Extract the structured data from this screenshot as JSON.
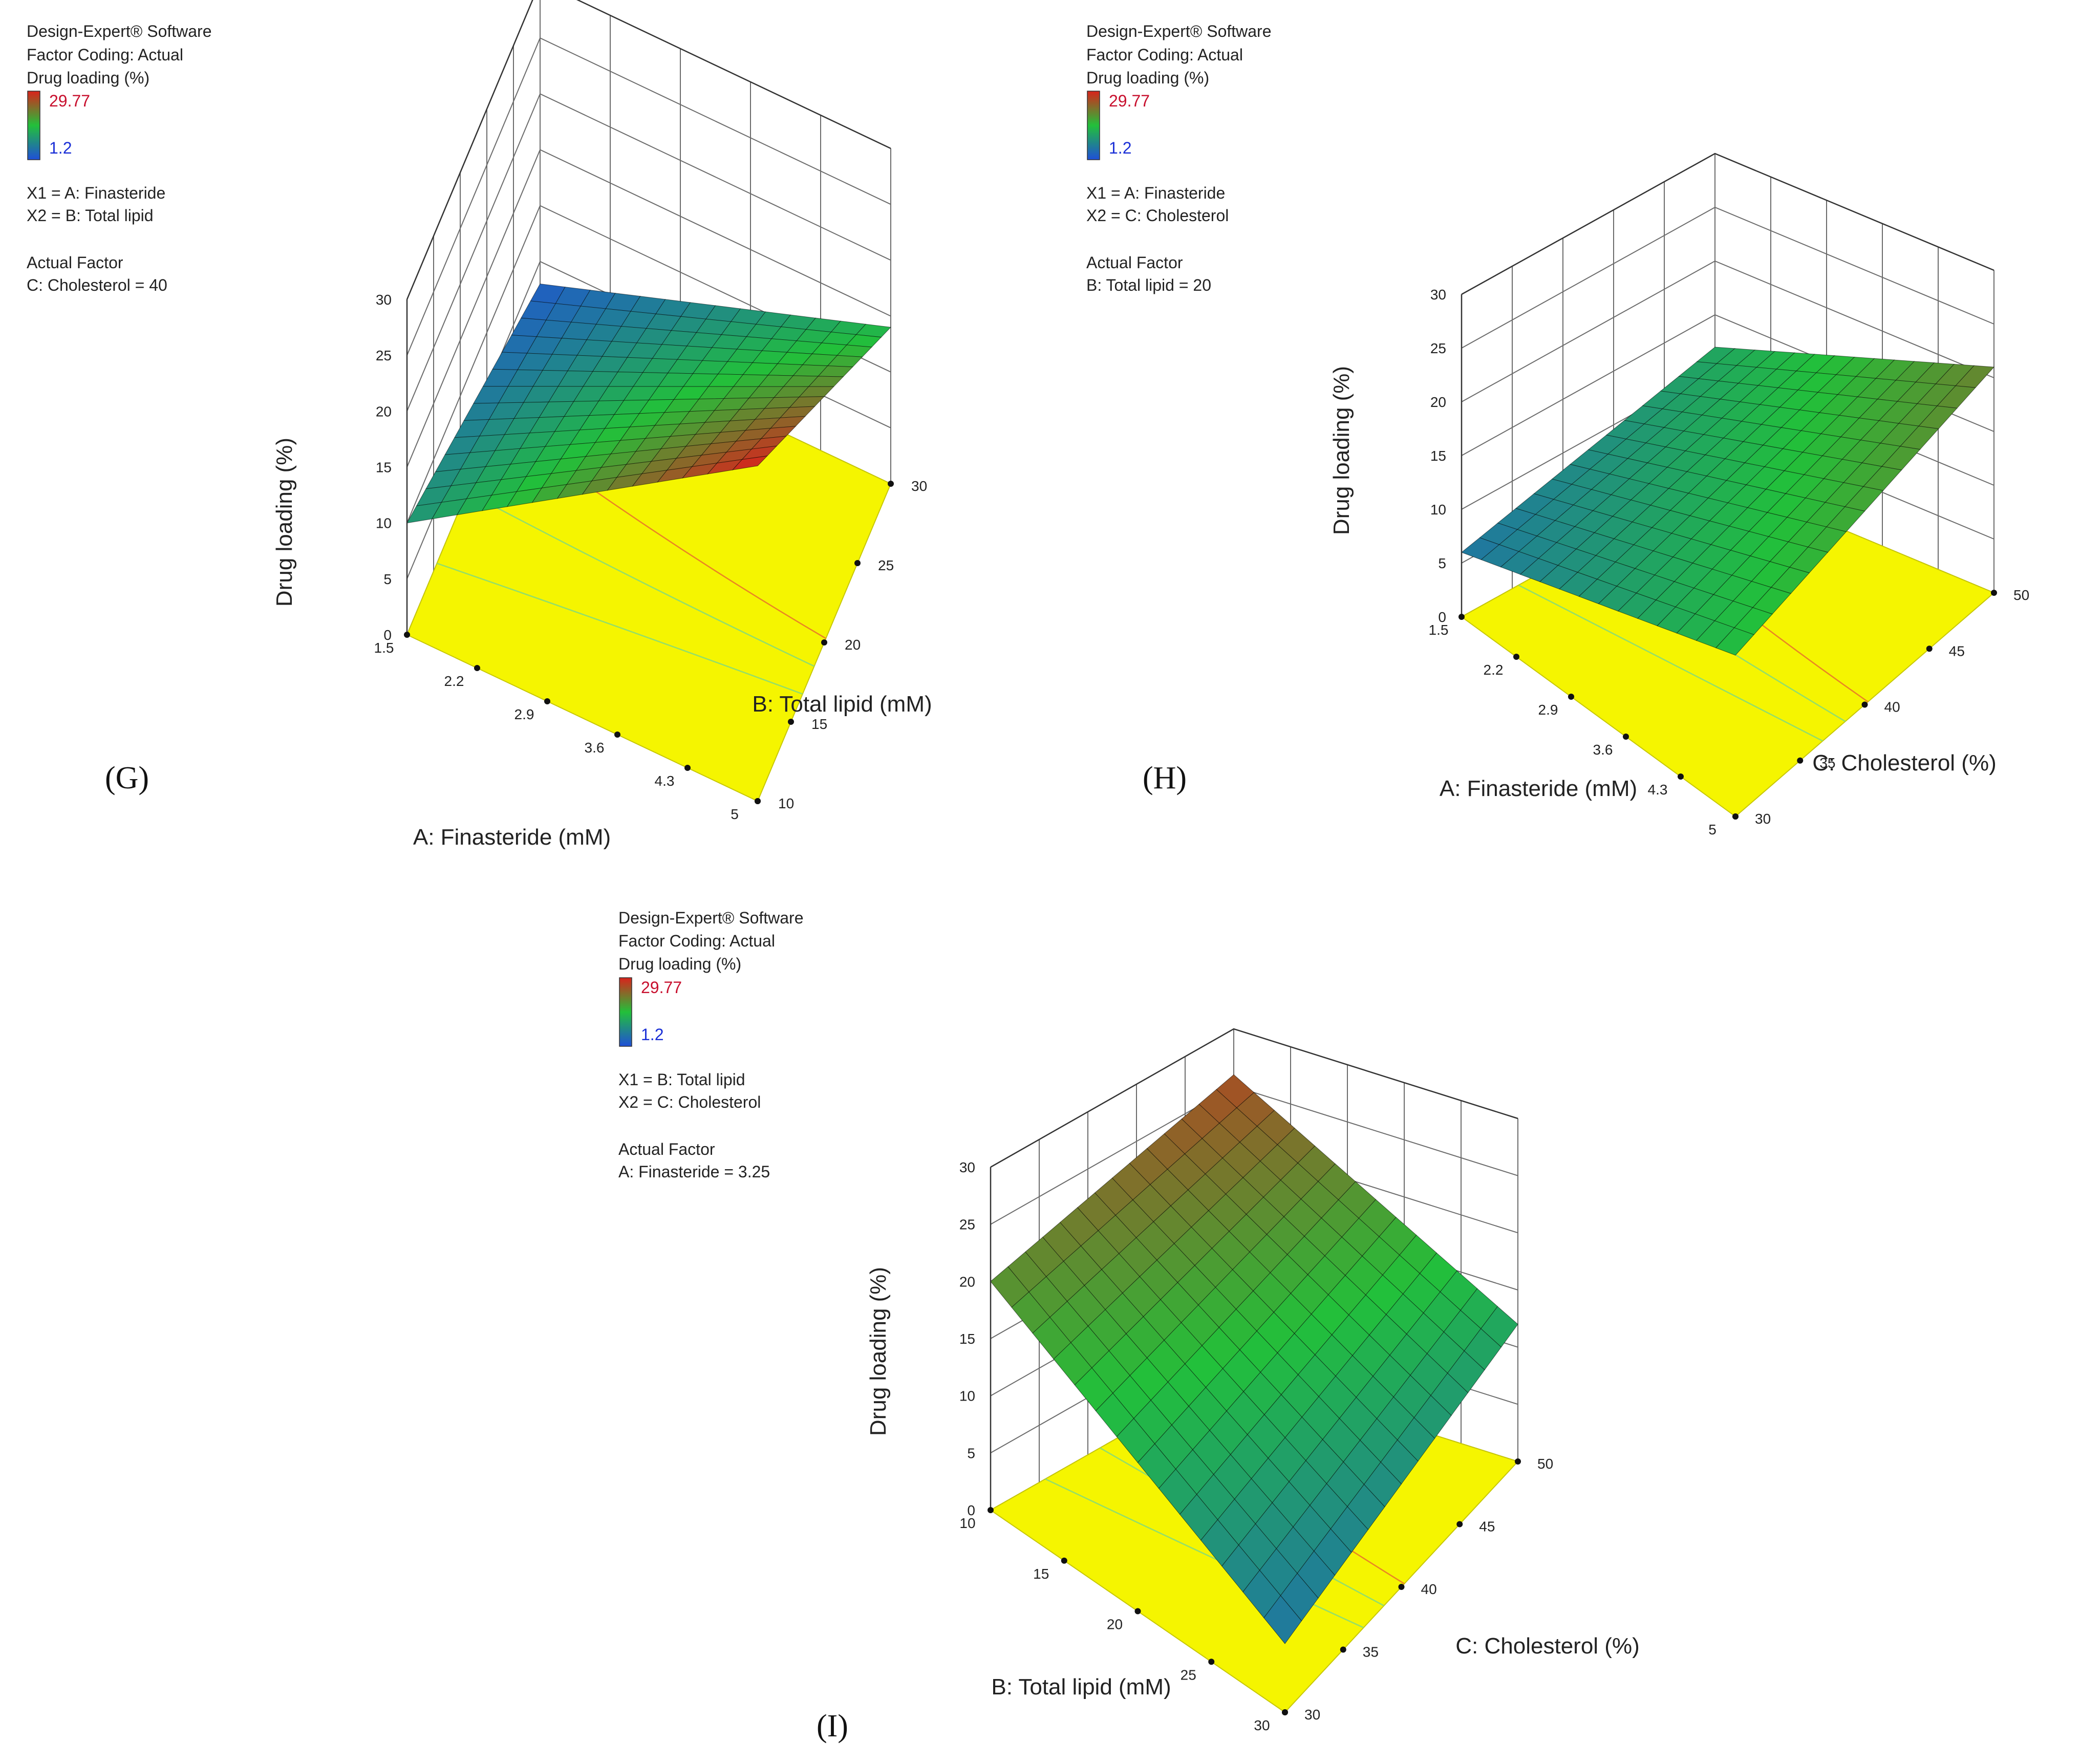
{
  "colors": {
    "floor": "#f5f500",
    "floor_edge": "#c8c800",
    "grid": "#6b6b6b",
    "scale_high": "#d9231c",
    "scale_mid": "#22c03a",
    "scale_low": "#1f4fd8",
    "max_text": "#c8102e",
    "min_text": "#1a2fd6",
    "contour_low": "#7fd97f",
    "contour_high": "#e8702a"
  },
  "chart_data": [
    {
      "type": "surface3d",
      "panel_label": "(G)",
      "legend": {
        "software": "Design-Expert® Software",
        "coding": "Factor Coding: Actual",
        "response": "Drug loading (%)",
        "max": "29.77",
        "min": "1.2",
        "x1": "X1 = A: Finasteride",
        "x2": "X2 = B: Total lipid",
        "actual_factor_title": "Actual Factor",
        "actual_factor": "C: Cholesterol = 40"
      },
      "zlabel": "Drug loading (%)",
      "zlim": [
        0,
        30
      ],
      "z_ticks": [
        "0",
        "5",
        "10",
        "15",
        "20",
        "25",
        "30"
      ],
      "axis_a": {
        "label": "A: Finasteride (mM)",
        "range": [
          1.5,
          5
        ],
        "ticks": [
          "1.5",
          "2.2",
          "2.9",
          "3.6",
          "4.3",
          "5"
        ]
      },
      "axis_b": {
        "label": "B: Total lipid (mM)",
        "range": [
          10,
          30
        ],
        "ticks": [
          "10",
          "15",
          "20",
          "25",
          "30"
        ]
      },
      "surface_corners": {
        "a_min_b_min": 10,
        "a_max_b_min": 30,
        "a_max_b_max": 14,
        "a_min_b_max": 3
      }
    },
    {
      "type": "surface3d",
      "panel_label": "(H)",
      "legend": {
        "software": "Design-Expert® Software",
        "coding": "Factor Coding: Actual",
        "response": "Drug loading (%)",
        "max": "29.77",
        "min": "1.2",
        "x1": "X1 = A: Finasteride",
        "x2": "X2 = C: Cholesterol",
        "actual_factor_title": "Actual Factor",
        "actual_factor": "B: Total lipid = 20"
      },
      "zlabel": "Drug loading (%)",
      "zlim": [
        0,
        30
      ],
      "z_ticks": [
        "0",
        "5",
        "10",
        "15",
        "20",
        "25",
        "30"
      ],
      "axis_a": {
        "label": "A: Finasteride (mM)",
        "range": [
          1.5,
          5
        ],
        "ticks": [
          "1.5",
          "2.2",
          "2.9",
          "3.6",
          "4.3",
          "5"
        ]
      },
      "axis_b": {
        "label": "C: Cholesterol (%)",
        "range": [
          30,
          50
        ],
        "ticks": [
          "30",
          "35",
          "40",
          "45",
          "50"
        ]
      },
      "surface_corners": {
        "a_min_b_min": 6,
        "a_max_b_min": 15,
        "a_max_b_max": 21,
        "a_min_b_max": 12
      }
    },
    {
      "type": "surface3d",
      "panel_label": "(I)",
      "legend": {
        "software": "Design-Expert® Software",
        "coding": "Factor Coding: Actual",
        "response": "Drug loading (%)",
        "max": "29.77",
        "min": "1.2",
        "x1": "X1 = B: Total lipid",
        "x2": "X2 = C: Cholesterol",
        "actual_factor_title": "Actual Factor",
        "actual_factor": "A: Finasteride = 3.25"
      },
      "zlabel": "Drug loading (%)",
      "zlim": [
        0,
        30
      ],
      "z_ticks": [
        "0",
        "5",
        "10",
        "15",
        "20",
        "25",
        "30"
      ],
      "axis_a": {
        "label": "B: Total lipid (mM)",
        "range": [
          10,
          30
        ],
        "ticks": [
          "10",
          "15",
          "20",
          "25",
          "30"
        ]
      },
      "axis_b": {
        "label": "C: Cholesterol (%)",
        "range": [
          30,
          50
        ],
        "ticks": [
          "30",
          "35",
          "40",
          "45",
          "50"
        ]
      },
      "surface_corners": {
        "a_min_b_min": 20,
        "a_max_b_min": 6,
        "a_max_b_max": 12,
        "a_min_b_max": 26
      }
    }
  ]
}
